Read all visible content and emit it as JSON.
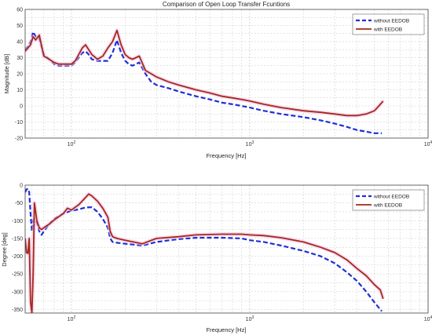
{
  "colors": {
    "without": "#1f2fd6",
    "with": "#a5281a",
    "grid": "#c8c8c8",
    "axis": "#444444",
    "glow": "#f2c2e6"
  },
  "chart_data": [
    {
      "type": "line",
      "title": "Comparison of Open Loop Transfer Fcuntions",
      "xlabel": "Frequency [Hz]",
      "ylabel": "Magnitude [dB]",
      "xscale": "log",
      "xlim": [
        55,
        10000
      ],
      "ylim": [
        -20,
        60
      ],
      "xticks": [
        100,
        1000,
        10000
      ],
      "xtick_labels": [
        {
          "base": "10",
          "exp": "2"
        },
        {
          "base": "10",
          "exp": "3"
        },
        {
          "base": "10",
          "exp": "4"
        }
      ],
      "yticks": [
        -20,
        -15,
        -10,
        -5,
        0,
        5,
        10,
        15,
        20,
        25,
        30,
        35,
        40,
        45,
        50,
        55,
        60
      ],
      "ytick_labels": [
        "-20",
        "-10",
        "0",
        "10",
        "20",
        "30",
        "40",
        "50",
        "60"
      ],
      "grid": true,
      "legend": {
        "position": "top-right",
        "entries": [
          "without EEDOB",
          "with EEDOB"
        ]
      },
      "series": [
        {
          "name": "without EEDOB",
          "style": "dashed",
          "x": [
            55,
            57,
            59,
            61,
            63,
            66,
            70,
            75,
            80,
            85,
            90,
            95,
            100,
            105,
            110,
            115,
            120,
            125,
            130,
            140,
            150,
            160,
            170,
            180,
            190,
            200,
            210,
            220,
            240,
            260,
            280,
            300,
            350,
            400,
            500,
            600,
            700,
            800,
            900,
            1000,
            1200,
            1500,
            2000,
            2500,
            3000,
            3500,
            4000,
            4500,
            5000,
            5500
          ],
          "y": [
            35,
            37,
            40,
            46,
            43,
            42,
            32,
            29,
            26,
            25,
            25,
            25,
            25,
            27,
            30,
            33,
            34,
            32,
            29,
            28,
            28,
            28,
            33,
            41,
            33,
            28,
            26,
            25,
            27,
            20,
            15,
            13,
            11,
            9,
            6,
            4,
            2,
            1,
            0,
            -1,
            -3,
            -5,
            -7,
            -9,
            -11,
            -13,
            -15,
            -16,
            -17,
            -17
          ]
        },
        {
          "name": "with EEDOB",
          "style": "solid",
          "x": [
            55,
            57,
            59,
            61,
            63,
            66,
            70,
            75,
            80,
            85,
            90,
            95,
            100,
            105,
            110,
            115,
            120,
            125,
            130,
            140,
            150,
            160,
            170,
            180,
            190,
            200,
            210,
            220,
            240,
            260,
            280,
            300,
            350,
            400,
            500,
            600,
            700,
            800,
            900,
            1000,
            1200,
            1500,
            2000,
            2500,
            3000,
            3500,
            4000,
            4500,
            5000,
            5300,
            5600
          ],
          "y": [
            34,
            36,
            38,
            43,
            41,
            44,
            31,
            29,
            27,
            26,
            26,
            26,
            26,
            28,
            32,
            36,
            38,
            35,
            32,
            29,
            31,
            36,
            40,
            47,
            38,
            32,
            30,
            29,
            31,
            22,
            20,
            18,
            15,
            13,
            10,
            8,
            6,
            5,
            4,
            3,
            1,
            -1,
            -3,
            -4,
            -5,
            -6,
            -6,
            -5,
            -3,
            0,
            3
          ]
        }
      ]
    },
    {
      "type": "line",
      "title": "",
      "xlabel": "Frequency [Hz]",
      "ylabel": "Degree [deg]",
      "xscale": "log",
      "xlim": [
        55,
        10000
      ],
      "ylim": [
        -360,
        0
      ],
      "xticks": [
        100,
        1000,
        10000
      ],
      "xtick_labels": [
        {
          "base": "10",
          "exp": "2"
        },
        {
          "base": "10",
          "exp": "3"
        },
        {
          "base": "10",
          "exp": "4"
        }
      ],
      "yticks": [
        -350,
        -325,
        -300,
        -275,
        -250,
        -225,
        -200,
        -175,
        -150,
        -125,
        -100,
        -75,
        -50,
        -25,
        0
      ],
      "ytick_labels": [
        "-350",
        "-300",
        "-250",
        "-200",
        "-150",
        "-100",
        "-50",
        "0"
      ],
      "grid": true,
      "legend": {
        "position": "top-right",
        "entries": [
          "without EEDOB",
          "with EEDOB"
        ]
      },
      "series": [
        {
          "name": "without EEDOB",
          "style": "dashed",
          "x": [
            55,
            56,
            57,
            58,
            59,
            60,
            61,
            62,
            64,
            66,
            68,
            70,
            75,
            80,
            90,
            100,
            110,
            120,
            130,
            140,
            150,
            160,
            165,
            170,
            180,
            200,
            250,
            300,
            400,
            500,
            700,
            900,
            1000,
            1200,
            1500,
            2000,
            2500,
            3000,
            3500,
            4000,
            4500,
            5000,
            5500
          ],
          "y": [
            -20,
            -12,
            -10,
            -20,
            -80,
            -130,
            -100,
            -95,
            -105,
            -130,
            -140,
            -130,
            -110,
            -95,
            -80,
            -72,
            -68,
            -63,
            -62,
            -75,
            -95,
            -120,
            -150,
            -160,
            -162,
            -165,
            -170,
            -160,
            -152,
            -148,
            -148,
            -150,
            -155,
            -160,
            -170,
            -185,
            -200,
            -220,
            -245,
            -270,
            -300,
            -330,
            -355
          ]
        },
        {
          "name": "with EEDOB",
          "style": "solid",
          "x": [
            55,
            56,
            57,
            58,
            59,
            60,
            61,
            62,
            64,
            66,
            68,
            70,
            75,
            80,
            90,
            95,
            100,
            110,
            120,
            125,
            130,
            140,
            150,
            160,
            165,
            170,
            180,
            200,
            250,
            300,
            400,
            500,
            700,
            900,
            1000,
            1200,
            1500,
            2000,
            2500,
            3000,
            3500,
            4000,
            4500,
            5000,
            5400,
            5600
          ],
          "y": [
            -150,
            -190,
            -192,
            -150,
            -330,
            -360,
            -250,
            -50,
            -100,
            -120,
            -125,
            -120,
            -110,
            -98,
            -80,
            -65,
            -70,
            -55,
            -35,
            -25,
            -30,
            -45,
            -65,
            -90,
            -130,
            -145,
            -150,
            -155,
            -165,
            -150,
            -145,
            -140,
            -138,
            -138,
            -140,
            -142,
            -148,
            -160,
            -175,
            -190,
            -210,
            -235,
            -255,
            -280,
            -295,
            -320
          ]
        }
      ]
    }
  ]
}
